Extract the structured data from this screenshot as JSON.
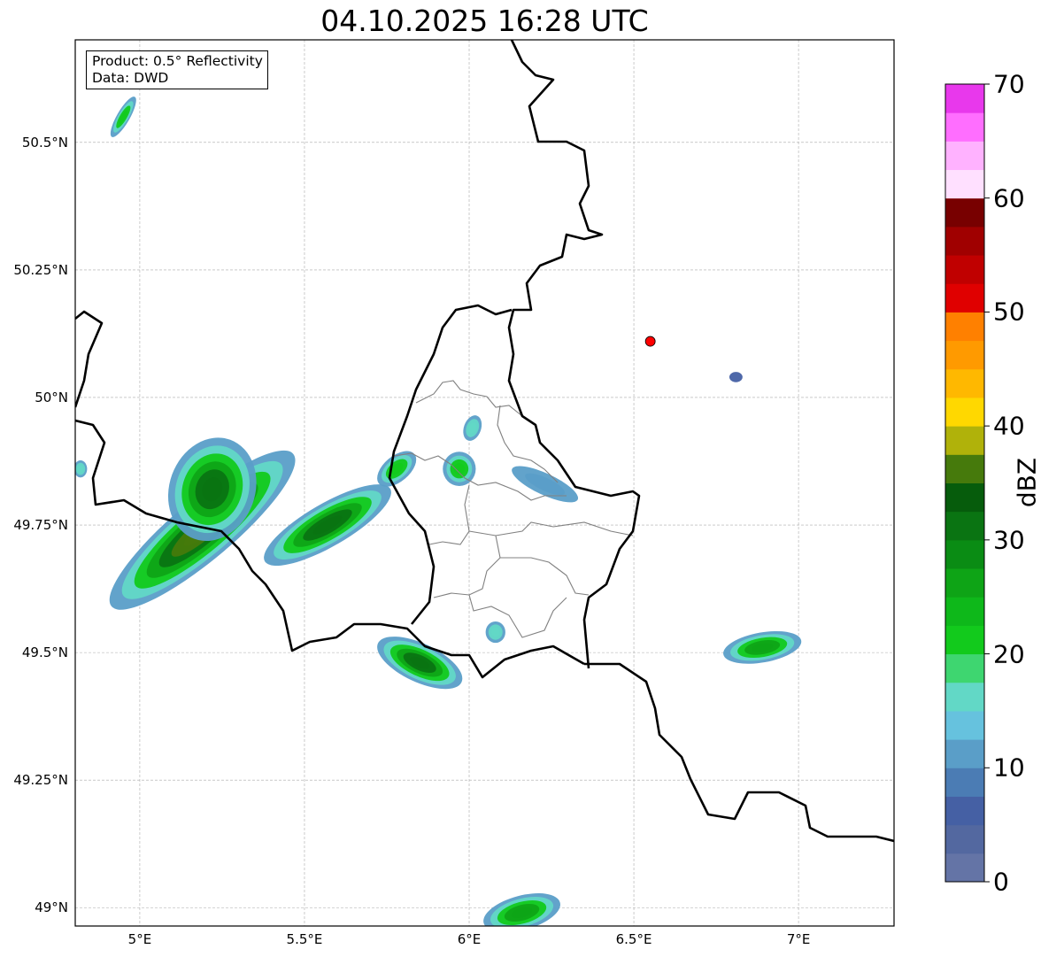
{
  "title": "04.10.2025 16:28 UTC",
  "infobox": {
    "product": "Product: 0.5° Reflectivity",
    "data": "Data: DWD"
  },
  "chart_data": {
    "type": "map",
    "title": "04.10.2025 16:28 UTC",
    "lon_range": [
      4.804,
      7.29
    ],
    "lat_range": [
      48.964,
      50.701
    ],
    "x_ticks": [
      {
        "value": 5.0,
        "label": "5°E"
      },
      {
        "value": 5.5,
        "label": "5.5°E"
      },
      {
        "value": 6.0,
        "label": "6°E"
      },
      {
        "value": 6.5,
        "label": "6.5°E"
      },
      {
        "value": 7.0,
        "label": "7°E"
      }
    ],
    "y_ticks": [
      {
        "value": 50.5,
        "label": "50.5°N"
      },
      {
        "value": 50.25,
        "label": "50.25°N"
      },
      {
        "value": 50.0,
        "label": "50°N"
      },
      {
        "value": 49.75,
        "label": "49.75°N"
      },
      {
        "value": 49.5,
        "label": "49.5°N"
      },
      {
        "value": 49.25,
        "label": "49.25°N"
      },
      {
        "value": 49.0,
        "label": "49°N"
      }
    ],
    "grid": true,
    "marker": {
      "lon": 6.55,
      "lat": 50.11,
      "color": "#ff0000"
    },
    "colorbar": {
      "label": "dBZ",
      "min": 0,
      "max": 70,
      "step": 2.5,
      "ticks": [
        "0",
        "10",
        "20",
        "30",
        "40",
        "50",
        "60",
        "70"
      ],
      "colors": [
        "#6474a6",
        "#5368a0",
        "#4560a4",
        "#4b7cb4",
        "#5a9ec8",
        "#66c2de",
        "#62d8c6",
        "#3ed670",
        "#12ca1c",
        "#0eb81a",
        "#0ea416",
        "#0a8c14",
        "#0a7412",
        "#065c0c",
        "#467a0c",
        "#b0b20a",
        "#ffd800",
        "#ffb800",
        "#ff9a00",
        "#ff8000",
        "#e00000",
        "#c00000",
        "#a00000",
        "#780000",
        "#ffe0ff",
        "#ffb2ff",
        "#ff6eff",
        "#e838ec"
      ]
    },
    "echoes": [
      {
        "lon": 5.19,
        "lat": 49.74,
        "a": 0.36,
        "b": 0.07,
        "angle": -40,
        "max_dbz": 35
      },
      {
        "lon": 5.22,
        "lat": 49.82,
        "a": 0.16,
        "b": 0.1,
        "angle": -70,
        "max_dbz": 30
      },
      {
        "lon": 5.57,
        "lat": 49.75,
        "a": 0.22,
        "b": 0.05,
        "angle": -30,
        "max_dbz": 32
      },
      {
        "lon": 5.85,
        "lat": 49.48,
        "a": 0.14,
        "b": 0.045,
        "angle": 25,
        "max_dbz": 32
      },
      {
        "lon": 6.89,
        "lat": 49.51,
        "a": 0.12,
        "b": 0.035,
        "angle": -10,
        "max_dbz": 25
      },
      {
        "lon": 5.97,
        "lat": 49.86,
        "a": 0.05,
        "b": 0.04,
        "angle": 0,
        "max_dbz": 22
      },
      {
        "lon": 6.23,
        "lat": 49.83,
        "a": 0.11,
        "b": 0.025,
        "angle": 25,
        "max_dbz": 12
      },
      {
        "lon": 4.95,
        "lat": 50.55,
        "a": 0.07,
        "b": 0.015,
        "angle": -60,
        "max_dbz": 22
      },
      {
        "lon": 6.16,
        "lat": 48.99,
        "a": 0.12,
        "b": 0.04,
        "angle": -15,
        "max_dbz": 25
      },
      {
        "lon": 6.81,
        "lat": 50.04,
        "a": 0.02,
        "b": 0.012,
        "angle": 0,
        "max_dbz": 5
      },
      {
        "lon": 6.08,
        "lat": 49.54,
        "a": 0.03,
        "b": 0.025,
        "angle": 0,
        "max_dbz": 17
      },
      {
        "lon": 6.01,
        "lat": 49.94,
        "a": 0.04,
        "b": 0.02,
        "angle": -70,
        "max_dbz": 15
      },
      {
        "lon": 4.82,
        "lat": 49.86,
        "a": 0.02,
        "b": 0.02,
        "angle": 0,
        "max_dbz": 15
      },
      {
        "lon": 5.78,
        "lat": 49.86,
        "a": 0.07,
        "b": 0.03,
        "angle": -40,
        "max_dbz": 22
      }
    ]
  }
}
